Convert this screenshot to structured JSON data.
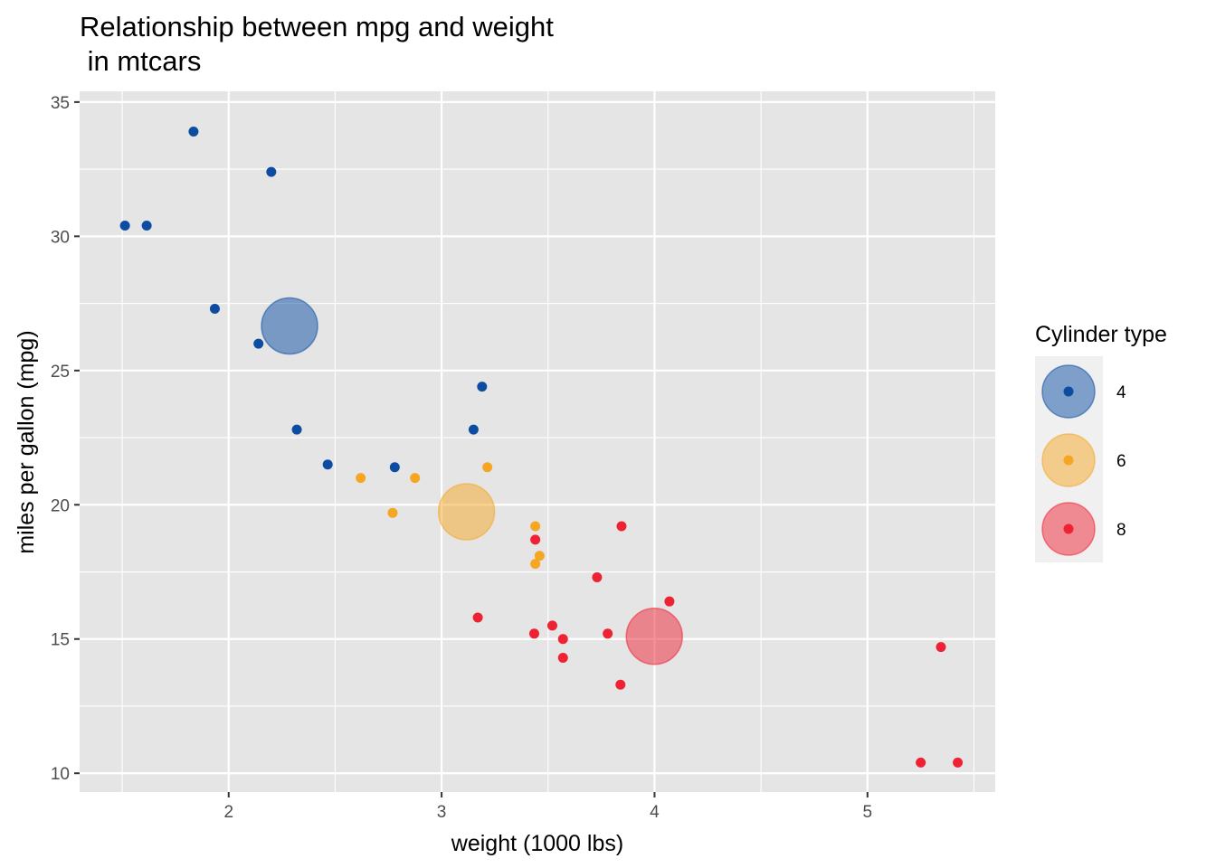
{
  "chart_data": {
    "type": "scatter",
    "title_lines": [
      "Relationship between mpg and weight",
      " in mtcars"
    ],
    "xlabel": "weight (1000 lbs)",
    "ylabel": "miles per gallon (mpg)",
    "xlim": [
      1.3,
      5.6
    ],
    "ylim": [
      9.3,
      35.4
    ],
    "x_ticks": [
      2,
      3,
      4,
      5
    ],
    "x_tick_labels": [
      "2",
      "3",
      "4",
      "5"
    ],
    "y_ticks": [
      10,
      15,
      20,
      25,
      30,
      35
    ],
    "y_tick_labels": [
      "10",
      "15",
      "20",
      "25",
      "30",
      "35"
    ],
    "x_minor_ticks": [
      1.5,
      2.5,
      3.5,
      4.5,
      5.5
    ],
    "y_minor_ticks": [
      12.5,
      17.5,
      22.5,
      27.5,
      32.5
    ],
    "grid": true,
    "panel_background": "#e5e5e5",
    "legend": {
      "title": "Cylinder type",
      "position": "right",
      "entries": [
        {
          "label": "4",
          "color": "#0c4da2"
        },
        {
          "label": "6",
          "color": "#f5a623"
        },
        {
          "label": "8",
          "color": "#ee2233"
        }
      ]
    },
    "series": [
      {
        "name": "4",
        "color": "#0c4da2",
        "points": [
          {
            "x": 2.32,
            "y": 22.8
          },
          {
            "x": 3.19,
            "y": 24.4
          },
          {
            "x": 3.15,
            "y": 22.8
          },
          {
            "x": 2.2,
            "y": 32.4
          },
          {
            "x": 1.615,
            "y": 30.4
          },
          {
            "x": 1.835,
            "y": 33.9
          },
          {
            "x": 2.465,
            "y": 21.5
          },
          {
            "x": 1.935,
            "y": 27.3
          },
          {
            "x": 2.14,
            "y": 26.0
          },
          {
            "x": 1.513,
            "y": 30.4
          },
          {
            "x": 2.78,
            "y": 21.4
          }
        ],
        "mean": {
          "x": 2.286,
          "y": 26.66
        }
      },
      {
        "name": "6",
        "color": "#f5a623",
        "points": [
          {
            "x": 2.62,
            "y": 21.0
          },
          {
            "x": 2.875,
            "y": 21.0
          },
          {
            "x": 3.215,
            "y": 21.4
          },
          {
            "x": 3.46,
            "y": 18.1
          },
          {
            "x": 3.44,
            "y": 19.2
          },
          {
            "x": 3.44,
            "y": 17.8
          },
          {
            "x": 2.77,
            "y": 19.7
          }
        ],
        "mean": {
          "x": 3.117,
          "y": 19.74
        }
      },
      {
        "name": "8",
        "color": "#ee2233",
        "points": [
          {
            "x": 3.44,
            "y": 18.7
          },
          {
            "x": 3.57,
            "y": 14.3
          },
          {
            "x": 4.07,
            "y": 16.4
          },
          {
            "x": 3.73,
            "y": 17.3
          },
          {
            "x": 3.78,
            "y": 15.2
          },
          {
            "x": 5.25,
            "y": 10.4
          },
          {
            "x": 5.424,
            "y": 10.4
          },
          {
            "x": 5.345,
            "y": 14.7
          },
          {
            "x": 3.52,
            "y": 15.5
          },
          {
            "x": 3.435,
            "y": 15.2
          },
          {
            "x": 3.84,
            "y": 13.3
          },
          {
            "x": 3.845,
            "y": 19.2
          },
          {
            "x": 3.17,
            "y": 15.8
          },
          {
            "x": 3.57,
            "y": 15.0
          }
        ],
        "mean": {
          "x": 3.999,
          "y": 15.1
        }
      }
    ]
  }
}
